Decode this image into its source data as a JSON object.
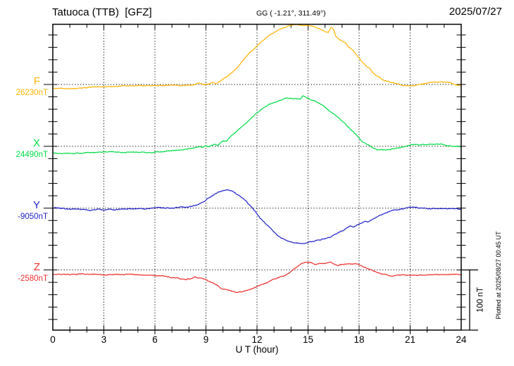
{
  "header": {
    "station": "Tatuoca (TTB)  [GFZ]",
    "coords": "GG ( -1.21°, 311.49°)",
    "date": "2025/07/27"
  },
  "axis": {
    "xlabel": "U T (hour)",
    "x_major_tick_labels": [
      "0",
      "3",
      "6",
      "9",
      "12",
      "15",
      "18",
      "21",
      "24"
    ]
  },
  "side": {
    "scale_label": "100 nT",
    "plotted_at": "Plotted at 2025/08/27 00:45 UT"
  },
  "chart_data": {
    "type": "line",
    "title": "Magnetogram, four stacked components F, X, Y, Z vs universal time",
    "xlabel": "U T (hour)",
    "x_range": [
      0,
      24
    ],
    "x_major_ticks": [
      0,
      3,
      6,
      9,
      12,
      15,
      18,
      21,
      24
    ],
    "x_minor_tick_step_hours": 1,
    "grid": "dotted vertical lines every 3 h; dotted horizontal line at each component baseline",
    "legend_position": "left margin, one colored label per component",
    "scale_bar": {
      "label": "100 nT",
      "nT": 100
    },
    "series": [
      {
        "name": "F",
        "baseline_label": "26230nT",
        "baseline_nT": 26230,
        "color": "#FFB300",
        "points_hour_offset_nT": [
          [
            0,
            -5.8
          ],
          [
            0.7,
            -7.6
          ],
          [
            1.5,
            -6.4
          ],
          [
            2.5,
            -4.1
          ],
          [
            3.5,
            -2.9
          ],
          [
            5,
            -2.3
          ],
          [
            6.5,
            -1.8
          ],
          [
            7.5,
            -1.2
          ],
          [
            8.3,
            -0.6
          ],
          [
            8.6,
            1.8
          ],
          [
            8.9,
            -1.8
          ],
          [
            9.2,
            0.6
          ],
          [
            9.4,
            4.7
          ],
          [
            9.6,
            1.8
          ],
          [
            10,
            9.4
          ],
          [
            10.4,
            17.5
          ],
          [
            10.8,
            28
          ],
          [
            11.2,
            41
          ],
          [
            11.6,
            54
          ],
          [
            12,
            65
          ],
          [
            12.4,
            75
          ],
          [
            12.8,
            84
          ],
          [
            13.2,
            90
          ],
          [
            13.6,
            95
          ],
          [
            14,
            98
          ],
          [
            14.4,
            99
          ],
          [
            14.8,
            98
          ],
          [
            15.2,
            96.5
          ],
          [
            15.6,
            92.5
          ],
          [
            16,
            88
          ],
          [
            16.2,
            86
          ],
          [
            16.35,
            94
          ],
          [
            16.5,
            91
          ],
          [
            16.65,
            79.5
          ],
          [
            17,
            72.5
          ],
          [
            17.25,
            68.4
          ],
          [
            17.35,
            62.6
          ],
          [
            17.6,
            57.3
          ],
          [
            18,
            44.4
          ],
          [
            18.4,
            32.7
          ],
          [
            18.65,
            28
          ],
          [
            18.78,
            21
          ],
          [
            19,
            14.6
          ],
          [
            19.4,
            8.2
          ],
          [
            19.8,
            3.5
          ],
          [
            20.2,
            0.6
          ],
          [
            20.6,
            -1.8
          ],
          [
            21,
            -2.9
          ],
          [
            21.3,
            -3.5
          ],
          [
            21.7,
            -0.6
          ],
          [
            22.1,
            2.9
          ],
          [
            22.5,
            4.7
          ],
          [
            22.9,
            4.1
          ],
          [
            23.4,
            2.3
          ],
          [
            24,
            -1.2
          ]
        ]
      },
      {
        "name": "X",
        "baseline_label": "24490nT",
        "baseline_nT": 24490,
        "color": "#00DC46",
        "points_hour_offset_nT": [
          [
            0,
            -11.1
          ],
          [
            0.5,
            -12.3
          ],
          [
            1.2,
            -12.3
          ],
          [
            2,
            -11.1
          ],
          [
            3,
            -10.5
          ],
          [
            4.2,
            -9.9
          ],
          [
            5.5,
            -9.9
          ],
          [
            6.3,
            -9.4
          ],
          [
            7,
            -7.6
          ],
          [
            7.7,
            -5.8
          ],
          [
            8.2,
            -3.5
          ],
          [
            8.6,
            -1.2
          ],
          [
            8.8,
            -1.8
          ],
          [
            9,
            0.6
          ],
          [
            9.2,
            -0.6
          ],
          [
            9.5,
            4.1
          ],
          [
            9.7,
            2.3
          ],
          [
            10,
            9.9
          ],
          [
            10.2,
            8.2
          ],
          [
            10.5,
            18.1
          ],
          [
            11,
            29.2
          ],
          [
            11.5,
            42.1
          ],
          [
            12,
            55
          ],
          [
            12.4,
            64.3
          ],
          [
            12.8,
            71.3
          ],
          [
            13.2,
            76
          ],
          [
            13.6,
            78.9
          ],
          [
            14,
            80.1
          ],
          [
            14.3,
            79.5
          ],
          [
            14.55,
            77.8
          ],
          [
            14.7,
            83.6
          ],
          [
            14.85,
            80.7
          ],
          [
            15,
            78.4
          ],
          [
            15.3,
            76
          ],
          [
            15.6,
            71.9
          ],
          [
            16,
            64.9
          ],
          [
            16.4,
            56.7
          ],
          [
            16.8,
            47.4
          ],
          [
            17.2,
            36.8
          ],
          [
            17.6,
            25.7
          ],
          [
            18,
            14
          ],
          [
            18.15,
            8.8
          ],
          [
            18.5,
            2.3
          ],
          [
            18.8,
            -2.3
          ],
          [
            19.1,
            -5.3
          ],
          [
            19.4,
            -6.4
          ],
          [
            19.8,
            -5.3
          ],
          [
            20.2,
            -2.9
          ],
          [
            20.6,
            -0.6
          ],
          [
            21,
            1.8
          ],
          [
            21.4,
            2.9
          ],
          [
            22,
            2.9
          ],
          [
            22.6,
            3.5
          ],
          [
            23.2,
            1.8
          ],
          [
            23.6,
            0.6
          ],
          [
            24,
            -0.6
          ]
        ]
      },
      {
        "name": "Y",
        "baseline_label": "-9050nT",
        "baseline_nT": -9050,
        "color": "#2222CC",
        "points_hour_offset_nT": [
          [
            0,
            0
          ],
          [
            0.5,
            -1.2
          ],
          [
            1,
            -1.8
          ],
          [
            1.7,
            -2.9
          ],
          [
            2.3,
            -3.5
          ],
          [
            3,
            -1.8
          ],
          [
            3.8,
            -1.8
          ],
          [
            4.5,
            -1.2
          ],
          [
            5.5,
            -1.2
          ],
          [
            6.2,
            -0.6
          ],
          [
            7,
            0.6
          ],
          [
            7.6,
            1.8
          ],
          [
            8.1,
            3.5
          ],
          [
            8.5,
            6.4
          ],
          [
            8.9,
            11.7
          ],
          [
            9.3,
            19.3
          ],
          [
            9.7,
            26.3
          ],
          [
            10,
            29.8
          ],
          [
            10.3,
            30.4
          ],
          [
            10.6,
            28.1
          ],
          [
            11,
            20.5
          ],
          [
            11.4,
            9.4
          ],
          [
            11.8,
            -3.5
          ],
          [
            12.2,
            -16.4
          ],
          [
            12.6,
            -28.7
          ],
          [
            13,
            -39.8
          ],
          [
            13.4,
            -48.5
          ],
          [
            13.8,
            -55
          ],
          [
            14.1,
            -57.9
          ],
          [
            14.5,
            -58.5
          ],
          [
            14.8,
            -57.9
          ],
          [
            15.1,
            -55.6
          ],
          [
            15.4,
            -54.4
          ],
          [
            15.7,
            -52.6
          ],
          [
            16,
            -50.9
          ],
          [
            16.3,
            -48
          ],
          [
            16.6,
            -43.3
          ],
          [
            17,
            -37.4
          ],
          [
            17.3,
            -33.3
          ],
          [
            17.5,
            -30.4
          ],
          [
            17.7,
            -31
          ],
          [
            18,
            -26.3
          ],
          [
            18.3,
            -22.8
          ],
          [
            18.5,
            -23.4
          ],
          [
            18.8,
            -18.1
          ],
          [
            19.2,
            -12.9
          ],
          [
            19.6,
            -8.2
          ],
          [
            20,
            -4.1
          ],
          [
            20.4,
            -1.2
          ],
          [
            20.8,
            0.6
          ],
          [
            21.2,
            1.2
          ],
          [
            21.6,
            0.6
          ],
          [
            22,
            0
          ],
          [
            22.5,
            -0.6
          ],
          [
            23,
            -1.2
          ],
          [
            23.5,
            -1.2
          ],
          [
            24,
            -1.2
          ]
        ]
      },
      {
        "name": "Z",
        "baseline_label": "-2580nT",
        "baseline_nT": -2580,
        "color": "#EE3030",
        "points_hour_offset_nT": [
          [
            0,
            -7.6
          ],
          [
            0.8,
            -7.6
          ],
          [
            1.6,
            -7
          ],
          [
            2.4,
            -7.6
          ],
          [
            3.2,
            -7.6
          ],
          [
            4,
            -8.2
          ],
          [
            5,
            -8.2
          ],
          [
            5.8,
            -8.8
          ],
          [
            6.5,
            -10.5
          ],
          [
            7.2,
            -12.9
          ],
          [
            7.8,
            -14.6
          ],
          [
            8.1,
            -14
          ],
          [
            8.35,
            -11.7
          ],
          [
            8.6,
            -13.5
          ],
          [
            9,
            -17
          ],
          [
            9.4,
            -22.2
          ],
          [
            9.8,
            -28.7
          ],
          [
            10.2,
            -33.9
          ],
          [
            10.5,
            -36.3
          ],
          [
            10.8,
            -36.8
          ],
          [
            11.1,
            -36.3
          ],
          [
            11.4,
            -33.9
          ],
          [
            11.8,
            -30.4
          ],
          [
            12.2,
            -25.7
          ],
          [
            12.7,
            -19.9
          ],
          [
            13.2,
            -14
          ],
          [
            13.6,
            -9.4
          ],
          [
            14,
            -2.3
          ],
          [
            14.3,
            4.7
          ],
          [
            14.6,
            9.9
          ],
          [
            14.9,
            12.9
          ],
          [
            15.2,
            12.3
          ],
          [
            15.45,
            8.2
          ],
          [
            15.7,
            10.5
          ],
          [
            16,
            11.7
          ],
          [
            16.25,
            12.9
          ],
          [
            16.5,
            11.1
          ],
          [
            16.75,
            7
          ],
          [
            17,
            8.8
          ],
          [
            17.3,
            10.5
          ],
          [
            17.6,
            9.9
          ],
          [
            17.9,
            9.4
          ],
          [
            18.15,
            7
          ],
          [
            18.45,
            4.1
          ],
          [
            18.75,
            0
          ],
          [
            19,
            -3.5
          ],
          [
            19.3,
            -7
          ],
          [
            19.7,
            -8.8
          ],
          [
            20,
            -9.4
          ],
          [
            20.4,
            -8.2
          ],
          [
            21,
            -7.6
          ],
          [
            21.6,
            -8.2
          ],
          [
            22.2,
            -7
          ],
          [
            22.8,
            -7.6
          ],
          [
            23.4,
            -7.6
          ],
          [
            24,
            -7
          ]
        ]
      }
    ]
  }
}
